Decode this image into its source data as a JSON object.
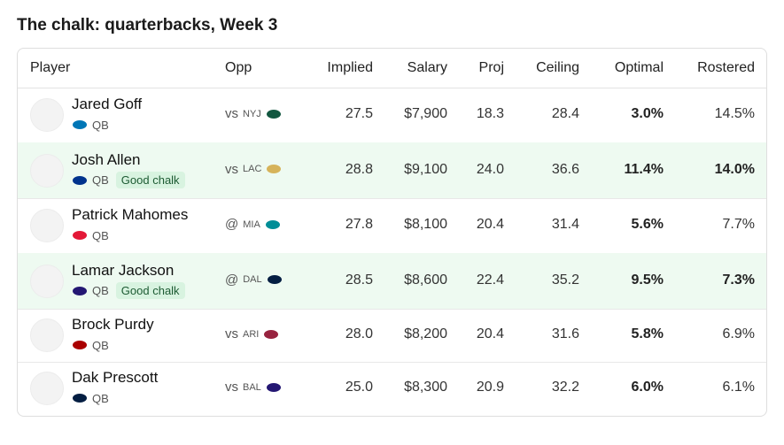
{
  "title": "The chalk: quarterbacks, Week 3",
  "table": {
    "headers": [
      "Player",
      "Opp",
      "Implied",
      "Salary",
      "Proj",
      "Ceiling",
      "Optimal",
      "Rostered"
    ],
    "rows": [
      {
        "player": "Jared Goff",
        "position": "QB",
        "opp_prefix": "vs",
        "opp": "NYJ",
        "implied": "27.5",
        "salary": "$7,900",
        "proj": "18.3",
        "ceiling": "28.4",
        "optimal": "3.0%",
        "rostered": "14.5%"
      },
      {
        "player": "Josh Allen",
        "position": "QB",
        "badge": "Good chalk",
        "opp_prefix": "vs",
        "opp": "LAC",
        "implied": "28.8",
        "salary": "$9,100",
        "proj": "24.0",
        "ceiling": "36.6",
        "optimal": "11.4%",
        "rostered": "14.0%"
      },
      {
        "player": "Patrick Mahomes",
        "position": "QB",
        "opp_prefix": "@",
        "opp": "MIA",
        "implied": "27.8",
        "salary": "$8,100",
        "proj": "20.4",
        "ceiling": "31.4",
        "optimal": "5.6%",
        "rostered": "7.7%"
      },
      {
        "player": "Lamar Jackson",
        "position": "QB",
        "badge": "Good chalk",
        "opp_prefix": "@",
        "opp": "DAL",
        "implied": "28.5",
        "salary": "$8,600",
        "proj": "22.4",
        "ceiling": "35.2",
        "optimal": "9.5%",
        "rostered": "7.3%"
      },
      {
        "player": "Brock Purdy",
        "position": "QB",
        "opp_prefix": "vs",
        "opp": "ARI",
        "implied": "28.0",
        "salary": "$8,200",
        "proj": "20.4",
        "ceiling": "31.6",
        "optimal": "5.8%",
        "rostered": "6.9%"
      },
      {
        "player": "Dak Prescott",
        "position": "QB",
        "opp_prefix": "vs",
        "opp": "BAL",
        "implied": "25.0",
        "salary": "$8,300",
        "proj": "20.9",
        "ceiling": "32.2",
        "optimal": "6.0%",
        "rostered": "6.1%"
      }
    ]
  }
}
